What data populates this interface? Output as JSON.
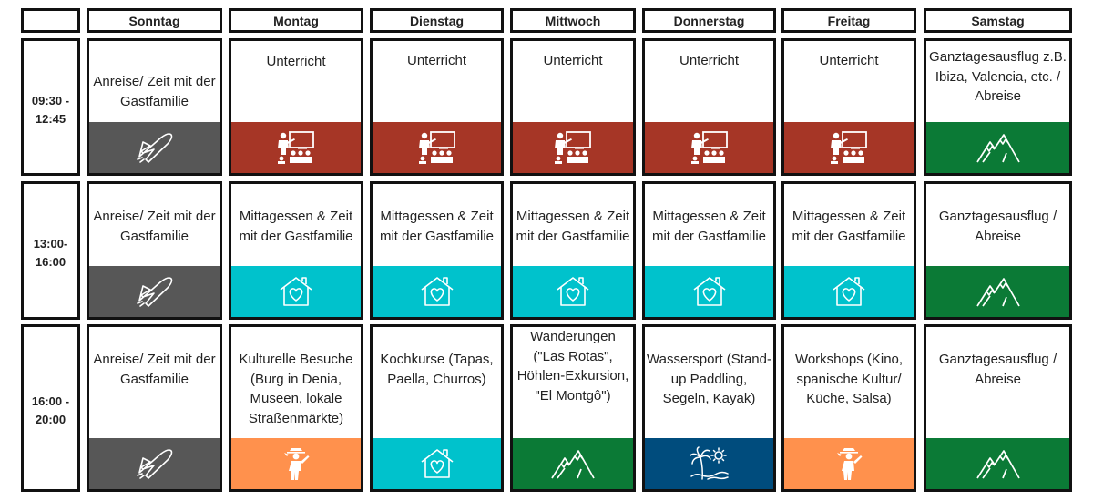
{
  "colors": {
    "travel": "#575757",
    "class": "#a63626",
    "home": "#00c2cc",
    "excursion": "#0b7a36",
    "activity": "#ff914d",
    "water": "#004c7d"
  },
  "header": {
    "days": [
      "Sonntag",
      "Montag",
      "Dienstag",
      "Mittwoch",
      "Donnerstag",
      "Freitag",
      "Samstag"
    ]
  },
  "rows": [
    {
      "time": "09:30 -\n12:45",
      "cells": [
        {
          "text": "Anreise/ Zeit mit der Gastfamilie",
          "icon": "airplane-icon",
          "color": "travel"
        },
        {
          "text": "Unterricht",
          "icon": "classroom-icon",
          "color": "class"
        },
        {
          "text": "Unterricht",
          "icon": "classroom-icon",
          "color": "class"
        },
        {
          "text": "Unterricht",
          "icon": "classroom-icon",
          "color": "class"
        },
        {
          "text": "Unterricht",
          "icon": "classroom-icon",
          "color": "class"
        },
        {
          "text": "Unterricht",
          "icon": "classroom-icon",
          "color": "class"
        },
        {
          "text": "Ganztagesausflug z.B. Ibiza, Valencia, etc. / Abreise",
          "icon": "mountain-icon",
          "color": "excursion"
        }
      ]
    },
    {
      "time": "13:00-\n16:00",
      "cells": [
        {
          "text": "Anreise/ Zeit mit der Gastfamilie",
          "icon": "airplane-icon",
          "color": "travel"
        },
        {
          "text": "Mittagessen & Zeit mit der Gastfamilie",
          "icon": "house-heart-icon",
          "color": "home"
        },
        {
          "text": "Mittagessen & Zeit mit der Gastfamilie",
          "icon": "house-heart-icon",
          "color": "home"
        },
        {
          "text": "Mittagessen & Zeit mit der Gastfamilie",
          "icon": "house-heart-icon",
          "color": "home"
        },
        {
          "text": "Mittagessen & Zeit mit der Gastfamilie",
          "icon": "house-heart-icon",
          "color": "home"
        },
        {
          "text": "Mittagessen & Zeit mit der Gastfamilie",
          "icon": "house-heart-icon",
          "color": "home"
        },
        {
          "text": "Ganztagesausflug / Abreise",
          "icon": "mountain-icon",
          "color": "excursion"
        }
      ]
    },
    {
      "time": "16:00 -\n20:00",
      "cells": [
        {
          "text": "Anreise/ Zeit mit der Gastfamilie",
          "icon": "airplane-icon",
          "color": "travel"
        },
        {
          "text": "Kulturelle Besuche (Burg in Denia, Museen, lokale Straßenmärkte)",
          "icon": "explorer-icon",
          "color": "activity"
        },
        {
          "text": "Kochkurse (Tapas, Paella, Churros)",
          "icon": "house-heart-icon",
          "color": "home"
        },
        {
          "text": "Wanderungen (\"Las Rotas\", Höhlen-Exkursion, \"El Montgô\")",
          "icon": "mountain-icon",
          "color": "excursion"
        },
        {
          "text": "Wassersport (Stand-up Paddling, Segeln, Kayak)",
          "icon": "palm-beach-icon",
          "color": "water"
        },
        {
          "text": "Workshops (Kino, spanische Kultur/ Küche, Salsa)",
          "icon": "explorer-icon",
          "color": "activity"
        },
        {
          "text": "Ganztagesausflug / Abreise",
          "icon": "mountain-icon",
          "color": "excursion"
        }
      ]
    }
  ]
}
